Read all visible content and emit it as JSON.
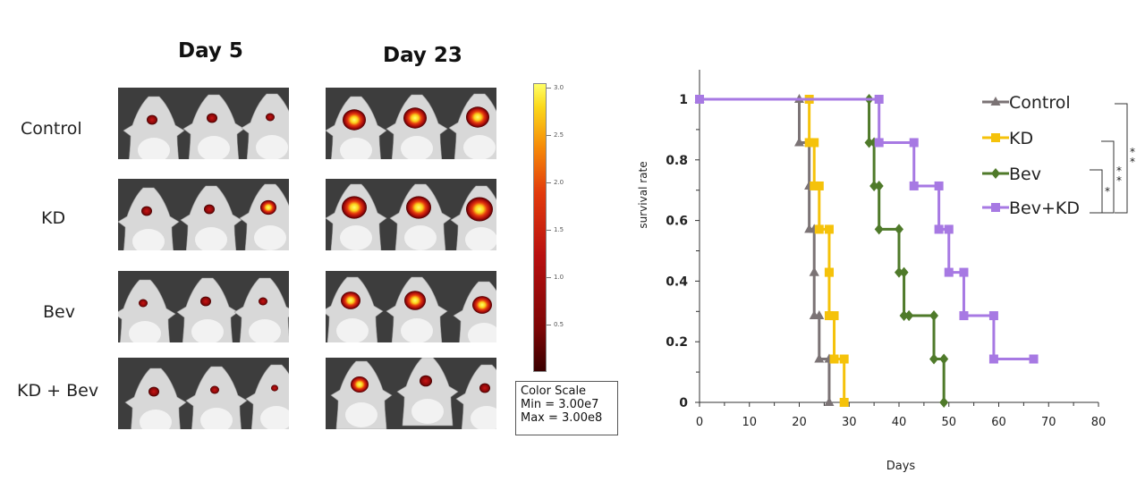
{
  "imaging": {
    "columns": [
      "Day 5",
      "Day 23"
    ],
    "rows": [
      "Control",
      "KD",
      "Bev",
      "KD + Bev"
    ],
    "color_scale": {
      "ticks": [
        "3.0",
        "2.5",
        "2.0",
        "1.5",
        "1.0",
        "0.5"
      ],
      "title": "Color Scale",
      "min": "Min = 3.00e7",
      "max": "Max = 3.00e8"
    }
  },
  "chart_data": {
    "type": "line",
    "step": true,
    "xlabel": "Days",
    "ylabel": "survival rate",
    "xlim": [
      0,
      80
    ],
    "ylim": [
      0,
      1.1
    ],
    "xticks": [
      "0",
      "10",
      "20",
      "30",
      "40",
      "50",
      "60",
      "70",
      "80"
    ],
    "yticks": [
      "0",
      "0.2",
      "0.4",
      "0.6",
      "0.8",
      "1"
    ],
    "legend_position": "top-right",
    "significance_marks": [
      "*",
      "* *",
      "* *"
    ],
    "series": [
      {
        "name": "Control",
        "color": "#7b7375",
        "marker": "triangle",
        "x": [
          0,
          20,
          22,
          22,
          23,
          23,
          24,
          26
        ],
        "y": [
          1,
          0.857,
          0.714,
          0.571,
          0.429,
          0.286,
          0.143,
          0
        ]
      },
      {
        "name": "KD",
        "color": "#f5c20a",
        "marker": "square",
        "x": [
          0,
          22,
          23,
          24,
          26,
          26,
          27,
          29
        ],
        "y": [
          1,
          0.857,
          0.714,
          0.571,
          0.429,
          0.286,
          0.143,
          0
        ]
      },
      {
        "name": "Bev",
        "color": "#4f7a2a",
        "marker": "diamond",
        "x": [
          0,
          34,
          35,
          36,
          40,
          41,
          42,
          47,
          49
        ],
        "y": [
          1,
          0.857,
          0.714,
          0.571,
          0.429,
          0.286,
          0.286,
          0.143,
          0
        ]
      },
      {
        "name": "Bev+KD",
        "color": "#a779e3",
        "marker": "square",
        "x": [
          0,
          36,
          43,
          48,
          50,
          53,
          59,
          67
        ],
        "y": [
          1,
          0.857,
          0.714,
          0.571,
          0.429,
          0.286,
          0.143,
          0.143
        ]
      }
    ]
  }
}
